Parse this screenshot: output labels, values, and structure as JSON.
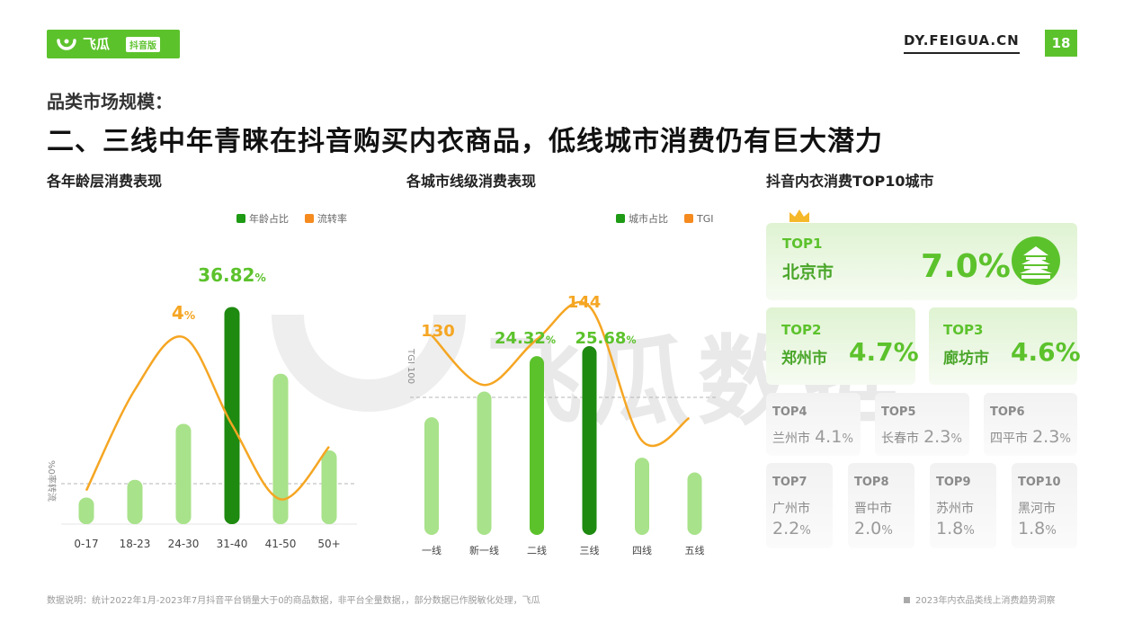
{
  "header": {
    "logo_text": "飞瓜",
    "logo_badge": "抖音版",
    "site": "DY.FEIGUA.CN",
    "page_number": "18",
    "subtitle": "品类市场规模：",
    "title": "二、三线中年青睐在抖音购买内衣商品，低线城市消费仍有巨大潜力"
  },
  "watermark": "飞瓜数据",
  "colors": {
    "brand_green": "#5cc22c",
    "dark_green": "#1e8a10",
    "light_green": "#a8e28a",
    "orange": "#f5a623"
  },
  "chart_data": [
    {
      "type": "bar",
      "title": "各年龄层消费表现",
      "categories": [
        "0-17",
        "18-23",
        "24-30",
        "31-40",
        "41-50",
        "50+"
      ],
      "series": [
        {
          "name": "年龄占比",
          "values": [
            4.5,
            7.5,
            17.0,
            36.82,
            25.5,
            12.5
          ],
          "type": "bar"
        },
        {
          "name": "流转率",
          "values": [
            0.5,
            2.8,
            4,
            2.0,
            0.3,
            1.5
          ],
          "type": "line"
        }
      ],
      "bar_label": {
        "category": "31-40",
        "value": "36.82",
        "unit": "%"
      },
      "line_label": {
        "category": "24-30",
        "value": "4",
        "unit": "%"
      },
      "ylabel": "%0率转流",
      "ylim_bar": [
        0,
        40
      ],
      "highlight": "31-40"
    },
    {
      "type": "bar",
      "title": "各城市线级消费表现",
      "categories": [
        "一线",
        "新一线",
        "二线",
        "三线",
        "四线",
        "五线"
      ],
      "series": [
        {
          "name": "城市占比",
          "values": [
            16.0,
            19.5,
            24.32,
            25.68,
            10.5,
            8.5
          ],
          "type": "bar"
        },
        {
          "name": "TGI",
          "values": [
            130,
            106,
            128,
            144,
            79,
            90
          ],
          "type": "line"
        }
      ],
      "bar_labels": [
        {
          "category": "二线",
          "value": "24.32",
          "unit": "%"
        },
        {
          "category": "三线",
          "value": "25.68",
          "unit": "%"
        }
      ],
      "line_labels": [
        {
          "category": "一线",
          "value": "130"
        },
        {
          "category": "三线",
          "value": "144"
        }
      ],
      "ylabel": "TGI 100",
      "reference_line": 100
    }
  ],
  "top_cities": {
    "title": "抖音内衣消费TOP10城市",
    "items": [
      {
        "rank": "TOP1",
        "city": "北京市",
        "value": "7.0",
        "unit": "%"
      },
      {
        "rank": "TOP2",
        "city": "郑州市",
        "value": "4.7",
        "unit": "%"
      },
      {
        "rank": "TOP3",
        "city": "廊坊市",
        "value": "4.6",
        "unit": "%"
      },
      {
        "rank": "TOP4",
        "city": "兰州市",
        "value": "4.1",
        "unit": "%"
      },
      {
        "rank": "TOP5",
        "city": "长春市",
        "value": "2.3",
        "unit": "%"
      },
      {
        "rank": "TOP6",
        "city": "四平市",
        "value": "2.3",
        "unit": "%"
      },
      {
        "rank": "TOP7",
        "city": "广州市",
        "value": "2.2",
        "unit": "%"
      },
      {
        "rank": "TOP8",
        "city": "晋中市",
        "value": "2.0",
        "unit": "%"
      },
      {
        "rank": "TOP9",
        "city": "苏州市",
        "value": "1.8",
        "unit": "%"
      },
      {
        "rank": "TOP10",
        "city": "黑河市",
        "value": "1.8",
        "unit": "%"
      }
    ]
  },
  "footer": {
    "note": "数据说明：统计2022年1月-2023年7月抖音平台销量大于0的商品数据，非平台全量数据，，部分数据已作脱敏化处理，飞瓜",
    "report": "2023年内衣品类线上消费趋势洞察"
  }
}
